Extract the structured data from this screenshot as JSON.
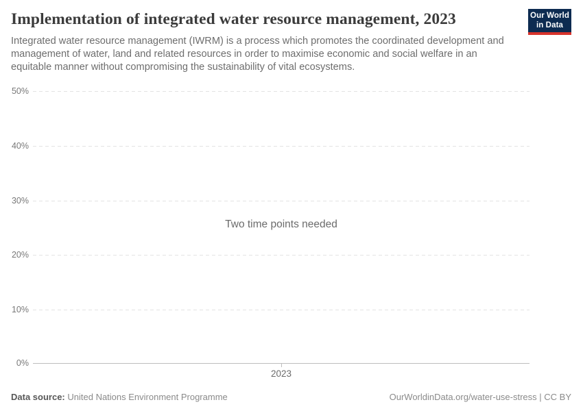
{
  "header": {
    "title": "Implementation of integrated water resource management, 2023",
    "subtitle": "Integrated water resource management (IWRM) is a process which promotes the coordinated development and management of water, land and related resources in order to maximise economic and social welfare in an equitable manner without compromising the sustainability of vital ecosystems.",
    "logo": {
      "line1": "Our World",
      "line2": "in Data"
    }
  },
  "chart_data": {
    "type": "line",
    "title": "Implementation of integrated water resource management, 2023",
    "note": "Two time points needed",
    "series": [],
    "x": [
      2023
    ],
    "xticks": [
      "2023"
    ],
    "yticks": [
      "0%",
      "10%",
      "20%",
      "30%",
      "40%",
      "50%"
    ],
    "ylim": [
      0,
      50
    ],
    "xlabel": "",
    "ylabel": "",
    "grid": "horizontal-dashed",
    "legend": "none",
    "empty_state_message": "Two time points needed"
  },
  "footer": {
    "datasource_label": "Data source:",
    "datasource_value": "United Nations Environment Programme",
    "attribution": "OurWorldinData.org/water-use-stress | CC BY"
  },
  "colors": {
    "title": "#3b3b3b",
    "subtitle": "#6d6d6d",
    "axis_labels": "#787878",
    "gridline": "#e3e3e3",
    "axis_line": "#bdbdbd",
    "logo_background": "#0d2b51",
    "logo_accent": "#d7332c",
    "background": "#ffffff"
  }
}
